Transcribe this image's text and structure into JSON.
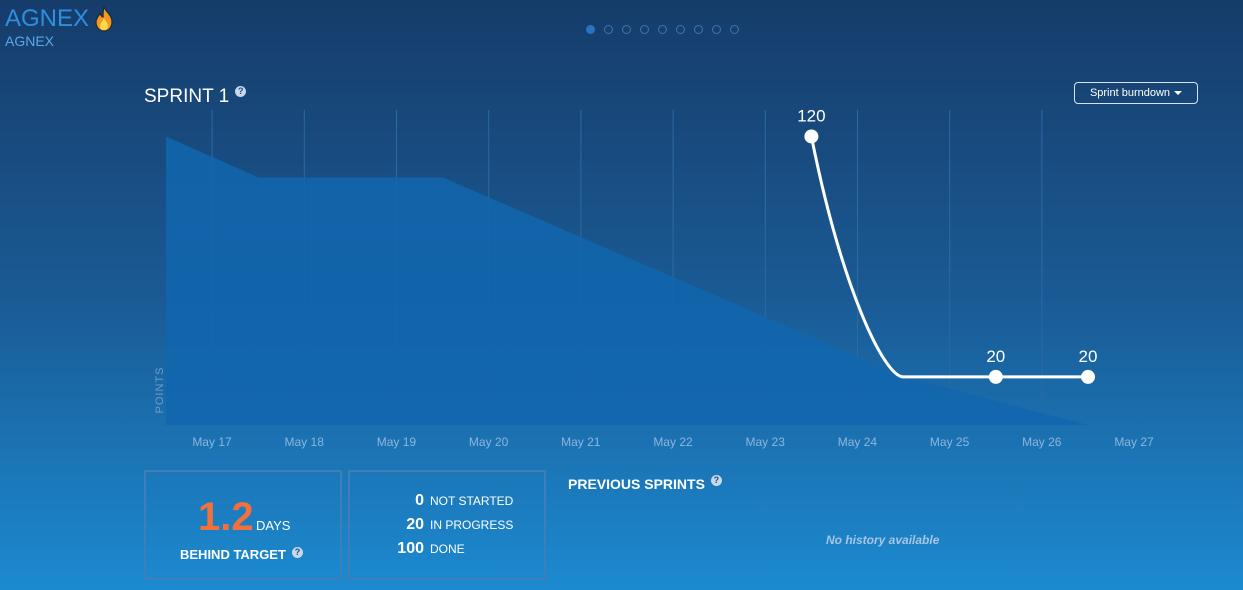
{
  "brand": {
    "title": "AGNEX",
    "subtitle": "AGNEX",
    "icon": "flame-icon"
  },
  "carousel": {
    "count": 9,
    "active_index": 0
  },
  "sprint": {
    "title": "SPRINT 1",
    "help": "?"
  },
  "view_selector": {
    "label": "Sprint burndown"
  },
  "colors": {
    "background_top": "#163c6a",
    "background_bottom": "#1c8ad0",
    "ideal_area": "#1266ae",
    "actual_line": "#ffffff",
    "behind_number": "#f2703c"
  },
  "chart_data": {
    "type": "line",
    "title": "",
    "xlabel": "",
    "ylabel": "POINTS",
    "categories": [
      "May 17",
      "May 18",
      "May 19",
      "May 20",
      "May 21",
      "May 22",
      "May 23",
      "May 24",
      "May 25",
      "May 26",
      "May 27"
    ],
    "ylim": [
      0,
      131
    ],
    "grid": true,
    "series": [
      {
        "kind": "area",
        "x": [
          "May 17",
          "May 18",
          "May 20",
          "May 25",
          "May 27"
        ],
        "values": [
          120,
          103,
          103,
          20,
          0
        ]
      },
      {
        "kind": "line",
        "x": [
          "May 24",
          "May 25",
          "May 27"
        ],
        "values": [
          120,
          20,
          20
        ],
        "point_labels": [
          {
            "x": "May 24",
            "label": "120"
          },
          {
            "x": "May 26",
            "label": "20"
          },
          {
            "x": "May 27",
            "label": "20"
          }
        ]
      }
    ]
  },
  "behind": {
    "value": "1.2",
    "unit": "DAYS",
    "label": "BEHIND TARGET",
    "help": "?"
  },
  "status": [
    {
      "count": "0",
      "label": "NOT STARTED"
    },
    {
      "count": "20",
      "label": "IN PROGRESS"
    },
    {
      "count": "100",
      "label": "DONE"
    }
  ],
  "previous_sprints": {
    "title": "PREVIOUS SPRINTS",
    "help": "?",
    "empty_text": "No history available"
  }
}
